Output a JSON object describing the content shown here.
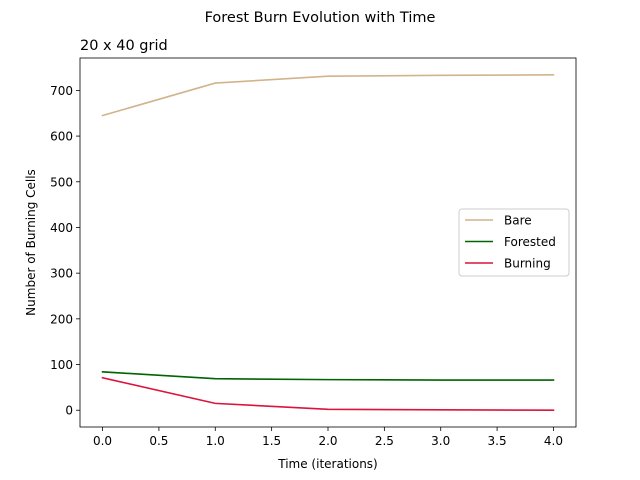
{
  "chart_data": {
    "type": "line",
    "title": "Forest Burn Evolution with Time",
    "subtitle": "20 x 40 grid",
    "xlabel": "Time (iterations)",
    "ylabel": "Number of Burning Cells",
    "x": [
      0,
      1,
      2,
      3,
      4
    ],
    "xlim": [
      -0.2,
      4.2
    ],
    "ylim": [
      -36.7,
      770.9
    ],
    "xticks": [
      0,
      0.5,
      1,
      1.5,
      2,
      2.5,
      3,
      3.5,
      4
    ],
    "xtick_labels": [
      "0.0",
      "0.5",
      "1.0",
      "1.5",
      "2.0",
      "2.5",
      "3.0",
      "3.5",
      "4.0"
    ],
    "yticks": [
      0,
      100,
      200,
      300,
      400,
      500,
      600,
      700
    ],
    "ytick_labels": [
      "0",
      "100",
      "200",
      "300",
      "400",
      "500",
      "600",
      "700"
    ],
    "grid": false,
    "legend_position": "center-right",
    "series": [
      {
        "name": "Bare",
        "color": "#d2b48c",
        "values": [
          645,
          716,
          731,
          733,
          734
        ]
      },
      {
        "name": "Forested",
        "color": "#006400",
        "values": [
          84,
          69,
          67,
          66,
          66
        ]
      },
      {
        "name": "Burning",
        "color": "#dc143c",
        "values": [
          71,
          15,
          2,
          1,
          0
        ]
      }
    ]
  }
}
